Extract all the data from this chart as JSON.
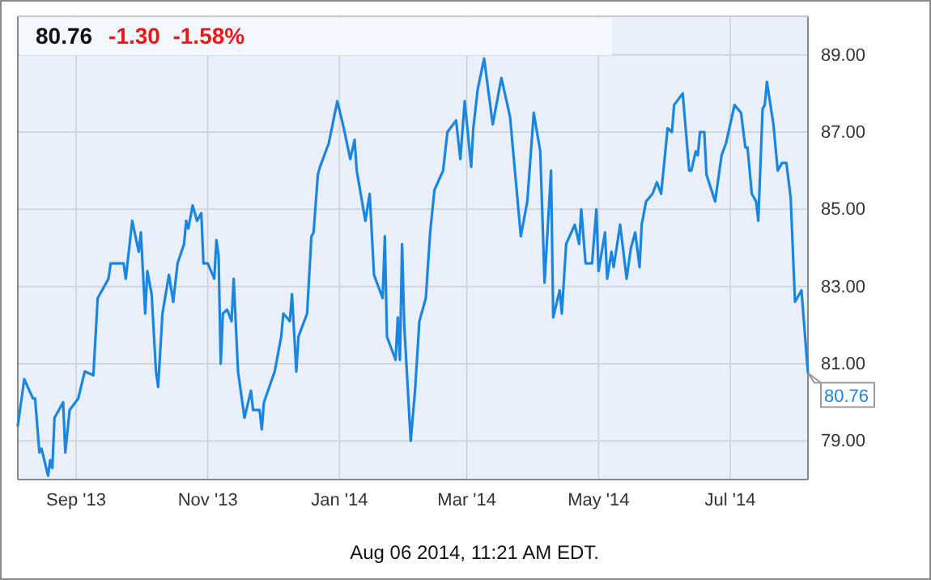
{
  "chart_data": {
    "type": "line",
    "title": "80.76",
    "subtitle": "-1.30  -1.58%",
    "x": [
      "2013-08-05",
      "2013-08-08",
      "2013-08-12",
      "2013-08-13",
      "2013-08-15",
      "2013-08-16",
      "2013-08-19",
      "2013-08-20",
      "2013-08-21",
      "2013-08-22",
      "2013-08-26",
      "2013-08-27",
      "2013-08-29",
      "2013-09-02",
      "2013-09-05",
      "2013-09-09",
      "2013-09-11",
      "2013-09-13",
      "2013-09-16",
      "2013-09-17",
      "2013-09-23",
      "2013-09-24",
      "2013-09-27",
      "2013-09-30",
      "2013-10-01",
      "2013-10-03",
      "2013-10-04",
      "2013-10-06",
      "2013-10-08",
      "2013-10-09",
      "2013-10-11",
      "2013-10-14",
      "2013-10-16",
      "2013-10-18",
      "2013-10-21",
      "2013-10-22",
      "2013-10-23",
      "2013-10-25",
      "2013-10-27",
      "2013-10-29",
      "2013-10-30",
      "2013-11-01",
      "2013-11-04",
      "2013-11-05",
      "2013-11-06",
      "2013-11-07",
      "2013-11-08",
      "2013-11-10",
      "2013-11-12",
      "2013-11-13",
      "2013-11-15",
      "2013-11-18",
      "2013-11-21",
      "2013-11-22",
      "2013-11-25",
      "2013-11-26",
      "2013-11-27",
      "2013-12-02",
      "2013-12-05",
      "2013-12-06",
      "2013-12-09",
      "2013-12-10",
      "2013-12-12",
      "2013-12-13",
      "2013-12-17",
      "2013-12-19",
      "2013-12-20",
      "2013-12-22",
      "2013-12-23",
      "2013-12-27",
      "2013-12-31",
      "2014-01-03",
      "2014-01-06",
      "2014-01-08",
      "2014-01-09",
      "2014-01-13",
      "2014-01-15",
      "2014-01-17",
      "2014-01-21",
      "2014-01-22",
      "2014-01-23",
      "2014-01-27",
      "2014-01-28",
      "2014-01-29",
      "2014-01-30",
      "2014-01-31",
      "2014-02-03",
      "2014-02-05",
      "2014-02-07",
      "2014-02-10",
      "2014-02-12",
      "2014-02-14",
      "2014-02-18",
      "2014-02-20",
      "2014-02-24",
      "2014-02-26",
      "2014-02-28",
      "2014-03-03",
      "2014-03-04",
      "2014-03-06",
      "2014-03-09",
      "2014-03-13",
      "2014-03-17",
      "2014-03-21",
      "2014-03-26",
      "2014-03-29",
      "2014-04-01",
      "2014-04-04",
      "2014-04-06",
      "2014-04-09",
      "2014-04-10",
      "2014-04-13",
      "2014-04-14",
      "2014-04-16",
      "2014-04-20",
      "2014-04-22",
      "2014-04-23",
      "2014-04-25",
      "2014-04-28",
      "2014-04-30",
      "2014-05-01",
      "2014-05-04",
      "2014-05-05",
      "2014-05-07",
      "2014-05-08",
      "2014-05-11",
      "2014-05-14",
      "2014-05-16",
      "2014-05-18",
      "2014-05-20",
      "2014-05-21",
      "2014-05-23",
      "2014-05-26",
      "2014-05-28",
      "2014-05-30",
      "2014-06-02",
      "2014-06-04",
      "2014-06-05",
      "2014-06-09",
      "2014-06-12",
      "2014-06-13",
      "2014-06-15",
      "2014-06-16",
      "2014-06-17",
      "2014-06-19",
      "2014-06-20",
      "2014-06-24",
      "2014-06-27",
      "2014-06-29",
      "2014-07-03",
      "2014-07-06",
      "2014-07-08",
      "2014-07-09",
      "2014-07-11",
      "2014-07-13",
      "2014-07-14",
      "2014-07-16",
      "2014-07-17",
      "2014-07-18",
      "2014-07-21",
      "2014-07-23",
      "2014-07-25",
      "2014-07-27",
      "2014-07-29",
      "2014-07-31",
      "2014-08-03",
      "2014-08-06"
    ],
    "series": [
      {
        "color": "#1a86e0",
        "values": [
          79.4,
          80.6,
          80.1,
          80.1,
          78.7,
          78.8,
          78.1,
          78.5,
          78.3,
          79.6,
          80.0,
          78.7,
          79.8,
          80.1,
          80.8,
          80.7,
          82.7,
          82.9,
          83.2,
          83.6,
          83.6,
          83.2,
          84.7,
          83.9,
          84.4,
          82.3,
          83.4,
          82.8,
          80.8,
          80.4,
          82.3,
          83.3,
          82.6,
          83.6,
          84.1,
          84.7,
          84.5,
          85.1,
          84.7,
          84.9,
          83.6,
          83.6,
          83.2,
          84.2,
          83.8,
          81.0,
          82.3,
          82.4,
          82.1,
          83.2,
          80.8,
          79.6,
          80.3,
          79.8,
          79.8,
          79.3,
          80.0,
          80.8,
          81.7,
          82.3,
          82.1,
          82.8,
          80.8,
          81.7,
          82.3,
          84.3,
          84.4,
          85.9,
          86.1,
          86.7,
          87.8,
          87.1,
          86.3,
          86.8,
          86.0,
          84.7,
          85.4,
          83.3,
          82.7,
          84.3,
          81.7,
          81.1,
          82.2,
          81.1,
          84.1,
          82.0,
          79.0,
          80.3,
          82.1,
          82.7,
          84.4,
          85.5,
          86.0,
          87.0,
          87.3,
          86.3,
          87.8,
          86.1,
          87.1,
          88.1,
          88.9,
          87.2,
          88.4,
          87.4,
          84.3,
          85.2,
          87.5,
          86.5,
          83.1,
          86.0,
          82.2,
          82.9,
          82.3,
          84.1,
          84.6,
          84.1,
          85.0,
          83.6,
          83.6,
          85.0,
          83.4,
          84.4,
          83.2,
          83.9,
          83.5,
          84.6,
          83.2,
          84.0,
          84.4,
          83.5,
          84.6,
          85.2,
          85.4,
          85.7,
          85.4,
          87.1,
          87.0,
          87.7,
          88.0,
          86.0,
          86.0,
          86.5,
          86.4,
          87.0,
          87.0,
          85.9,
          85.2,
          86.4,
          86.7,
          87.7,
          87.5,
          86.6,
          86.6,
          85.4,
          85.2,
          84.7,
          87.6,
          87.7,
          88.3,
          87.2,
          86.0,
          86.2,
          86.2,
          85.3,
          82.6,
          82.9,
          80.76
        ]
      }
    ],
    "xlim": [
      "2013-08-05",
      "2014-08-06"
    ],
    "xticks": [
      {
        "value": "2013-09-01",
        "label": "Sep '13"
      },
      {
        "value": "2013-11-01",
        "label": "Nov '13"
      },
      {
        "value": "2014-01-01",
        "label": "Jan '14"
      },
      {
        "value": "2014-03-01",
        "label": "Mar '14"
      },
      {
        "value": "2014-05-01",
        "label": "May '14"
      },
      {
        "value": "2014-07-01",
        "label": "Jul '14"
      }
    ],
    "ylim": [
      78,
      90
    ],
    "yticks": [
      {
        "value": 79,
        "label": "79.00"
      },
      {
        "value": 81,
        "label": "81.00"
      },
      {
        "value": 83,
        "label": "83.00"
      },
      {
        "value": 85,
        "label": "85.00"
      },
      {
        "value": 87,
        "label": "87.00"
      },
      {
        "value": 89,
        "label": "89.00"
      }
    ],
    "grid": true,
    "annotations": [
      {
        "text": "80.76",
        "x": "2014-08-06",
        "y": 80.76
      },
      "Aug 06 2014, 11:21 AM EDT."
    ]
  }
}
